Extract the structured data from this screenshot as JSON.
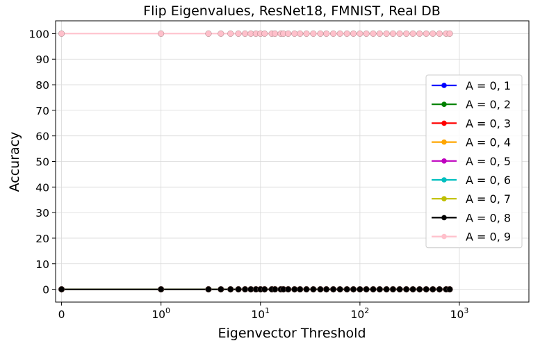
{
  "chart_data": {
    "type": "line",
    "title": "Flip Eigenvalues, ResNet18, FMNIST, Real DB",
    "xlabel": "Eigenvector Threshold",
    "ylabel": "Accuracy",
    "xscale": "symlog",
    "xlim": [
      -0.06,
      5000
    ],
    "ylim": [
      -5,
      105
    ],
    "grid": true,
    "legend_position": "center-right",
    "x_ticks": [
      {
        "value": 0,
        "base": "0",
        "exp": ""
      },
      {
        "value": 1,
        "base": "10",
        "exp": "0"
      },
      {
        "value": 10,
        "base": "10",
        "exp": "1"
      },
      {
        "value": 100,
        "base": "10",
        "exp": "2"
      },
      {
        "value": 1000,
        "base": "10",
        "exp": "3"
      }
    ],
    "y_ticks": [
      0,
      10,
      20,
      30,
      40,
      50,
      60,
      70,
      80,
      90,
      100
    ],
    "x": [
      0,
      1,
      3,
      4,
      5,
      6,
      7,
      8,
      9,
      10,
      11,
      13,
      14,
      16,
      17,
      19,
      22,
      25,
      29,
      34,
      40,
      46,
      54,
      63,
      74,
      86,
      100,
      116,
      136,
      158,
      185,
      215,
      251,
      293,
      341,
      398,
      464,
      541,
      631,
      736,
      800
    ],
    "series": [
      {
        "name": "A = 0, 1",
        "color": "#0000ff",
        "y_start": 0,
        "y_rest": 0
      },
      {
        "name": "A = 0, 2",
        "color": "#008000",
        "y_start": 0,
        "y_rest": 0
      },
      {
        "name": "A = 0, 3",
        "color": "#ff0000",
        "y_start": 0,
        "y_rest": 0
      },
      {
        "name": "A = 0, 4",
        "color": "#ffa500",
        "y_start": 0,
        "y_rest": 0
      },
      {
        "name": "A = 0, 5",
        "color": "#bf00bf",
        "y_start": 0,
        "y_rest": 0
      },
      {
        "name": "A = 0, 6",
        "color": "#00bfbf",
        "y_start": 0,
        "y_rest": 0
      },
      {
        "name": "A = 0, 7",
        "color": "#bfbf00",
        "y_start": 0,
        "y_rest": 0
      },
      {
        "name": "A = 0, 8",
        "color": "#000000",
        "y_start": 0,
        "y_rest": 0
      },
      {
        "name": "A = 0, 9",
        "color": "#ffc0cb",
        "y_start": 100,
        "y_rest": 100
      }
    ]
  }
}
